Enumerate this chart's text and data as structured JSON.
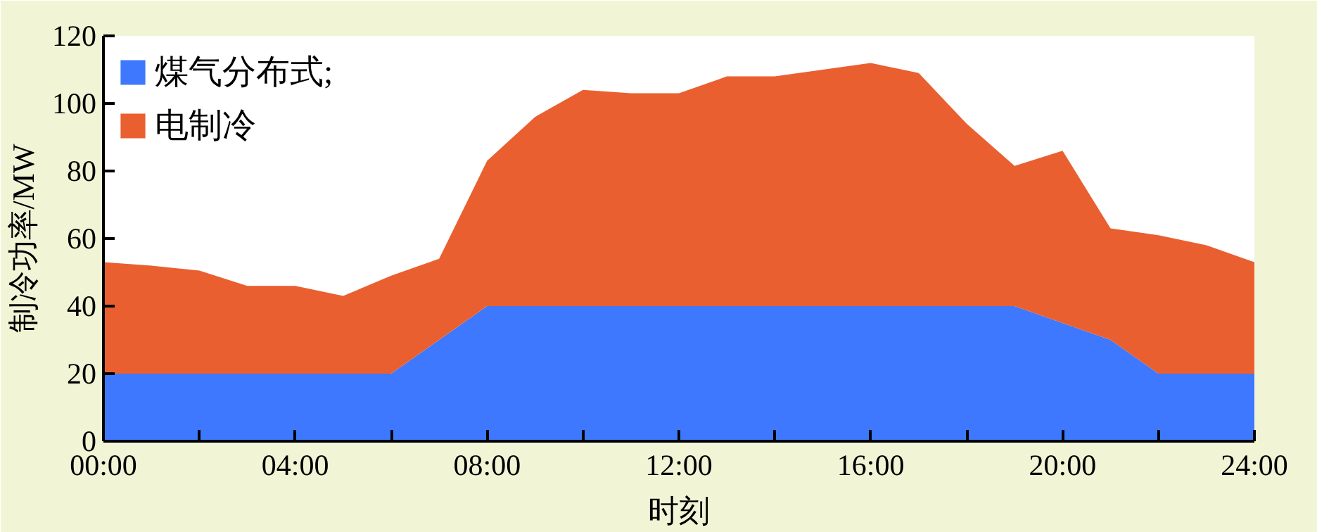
{
  "chart_data": {
    "type": "area",
    "stacked": true,
    "xlabel": "时刻",
    "ylabel": "制冷功率/MW",
    "x": [
      0,
      1,
      2,
      3,
      4,
      5,
      6,
      7,
      8,
      9,
      10,
      11,
      12,
      13,
      14,
      15,
      16,
      17,
      18,
      19,
      20,
      21,
      22,
      23,
      24
    ],
    "series": [
      {
        "name": "煤气分布式;",
        "color": "#3d78fe",
        "values": [
          20,
          20,
          20,
          20,
          20,
          20,
          20,
          30,
          40,
          40,
          40,
          40,
          40,
          40,
          40,
          40,
          40,
          40,
          40,
          40,
          35,
          30,
          20,
          20,
          20
        ]
      },
      {
        "name": "电制冷",
        "color": "#ea5f2f",
        "values": [
          33,
          32,
          30.5,
          26,
          26,
          23,
          29,
          24,
          43,
          56,
          64,
          63,
          63,
          68,
          68,
          70,
          72,
          69,
          54,
          41.5,
          51,
          33,
          41,
          38,
          33
        ]
      }
    ],
    "xlim": [
      0,
      24
    ],
    "xticks": [
      {
        "value": 0,
        "label": "00:00"
      },
      {
        "value": 2,
        "label": null
      },
      {
        "value": 4,
        "label": "04:00"
      },
      {
        "value": 6,
        "label": null
      },
      {
        "value": 8,
        "label": "08:00"
      },
      {
        "value": 10,
        "label": null
      },
      {
        "value": 12,
        "label": "12:00"
      },
      {
        "value": 14,
        "label": null
      },
      {
        "value": 16,
        "label": "16:00"
      },
      {
        "value": 18,
        "label": null
      },
      {
        "value": 20,
        "label": "20:00"
      },
      {
        "value": 22,
        "label": null
      },
      {
        "value": 24,
        "label": "24:00"
      }
    ],
    "ylim": [
      0,
      120
    ],
    "yticks": [
      0,
      20,
      40,
      60,
      80,
      100,
      120
    ],
    "grid": false,
    "legend": "top left"
  }
}
